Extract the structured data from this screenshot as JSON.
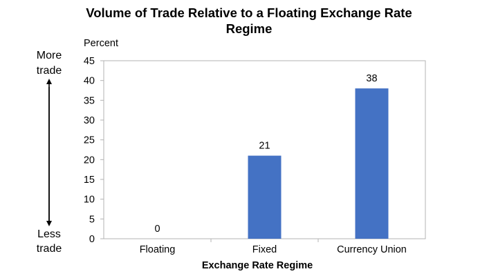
{
  "chart_data": {
    "type": "bar",
    "title_line1": "Volume of Trade Relative to a Floating Exchange Rate",
    "title_line2": "Regime",
    "xlabel": "Exchange Rate Regime",
    "ylabel": "Percent",
    "categories": [
      "Floating",
      "Fixed",
      "Currency Union"
    ],
    "values": [
      0,
      21,
      38
    ],
    "data_labels": [
      "0",
      "21",
      "38"
    ],
    "ylim": [
      0,
      45
    ],
    "yticks": [
      0,
      5,
      10,
      15,
      20,
      25,
      30,
      35,
      40,
      45
    ],
    "grid": false,
    "bar_color": "#4472C4",
    "annotation": {
      "top_line1": "More",
      "top_line2": "trade",
      "bottom_line1": "Less",
      "bottom_line2": "trade"
    }
  }
}
